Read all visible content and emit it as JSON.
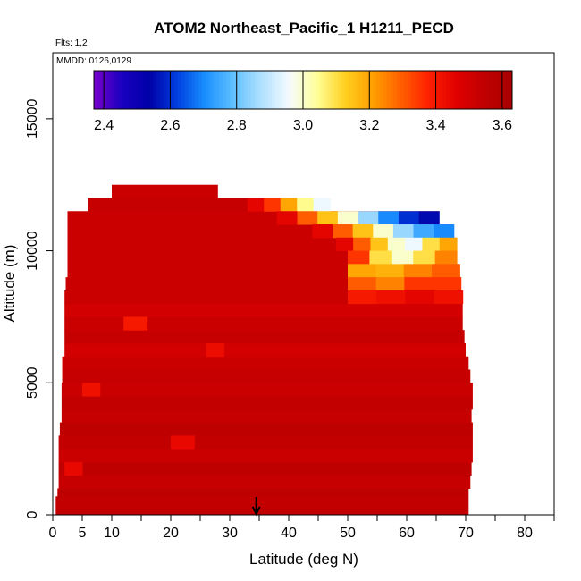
{
  "chart_data": {
    "type": "heatmap",
    "title": "ATOM2 Northeast_Pacific_1 H1211_PECD",
    "flights_label": "Flts: 1,2",
    "dates_label": "MMDD: 0126,0129",
    "xlabel": "Latitude (deg N)",
    "ylabel": "Altitude (m)",
    "xlim": [
      0,
      85
    ],
    "ylim": [
      0,
      17500
    ],
    "x_ticks": [
      0,
      5,
      10,
      20,
      30,
      40,
      50,
      60,
      70,
      80
    ],
    "x_minor_ticks": [
      15,
      25,
      35,
      45,
      55,
      65,
      75,
      85
    ],
    "y_ticks": [
      0,
      5000,
      10000,
      15000
    ],
    "colorbar": {
      "min": 2.37,
      "max": 3.63,
      "ticks": [
        2.4,
        2.6,
        2.8,
        3.0,
        3.2,
        3.4,
        3.6
      ],
      "colors": [
        "#7a00cc",
        "#1a00c0",
        "#0000a8",
        "#0040e0",
        "#1a90ff",
        "#60c0ff",
        "#b0e0ff",
        "#f5fbff",
        "#ffff99",
        "#ffd020",
        "#ffa000",
        "#ff6000",
        "#ff2000",
        "#e00000",
        "#c00000",
        "#a80000"
      ]
    },
    "marker": {
      "x": 34.5,
      "label": "arrow"
    },
    "rows": [
      {
        "z0": 0,
        "z1": 700,
        "x0": 0.5,
        "x1": 70.5,
        "value": 3.54
      },
      {
        "z0": 700,
        "z1": 1000,
        "x0": 0.8,
        "x1": 70.5,
        "value": 3.55
      },
      {
        "z0": 1000,
        "z1": 1500,
        "x0": 1.0,
        "x1": 70.8,
        "value": 3.53
      },
      {
        "z0": 1500,
        "z1": 2000,
        "x0": 1.0,
        "x1": 71.0,
        "value": 3.55
      },
      {
        "z0": 2000,
        "z1": 2500,
        "x0": 1.0,
        "x1": 71.2,
        "value": 3.52
      },
      {
        "z0": 2500,
        "z1": 3000,
        "x0": 1.0,
        "x1": 71.2,
        "value": 3.54
      },
      {
        "z0": 3000,
        "z1": 3500,
        "x0": 1.2,
        "x1": 71.2,
        "value": 3.55
      },
      {
        "z0": 3500,
        "z1": 4000,
        "x0": 1.5,
        "x1": 71.0,
        "value": 3.53
      },
      {
        "z0": 4000,
        "z1": 4500,
        "x0": 1.5,
        "x1": 71.2,
        "value": 3.54
      },
      {
        "z0": 4500,
        "z1": 5000,
        "x0": 1.5,
        "x1": 71.2,
        "value": 3.52
      },
      {
        "z0": 5000,
        "z1": 5500,
        "x0": 1.6,
        "x1": 70.8,
        "value": 3.53
      },
      {
        "z0": 5500,
        "z1": 6000,
        "x0": 1.6,
        "x1": 70.5,
        "value": 3.52
      },
      {
        "z0": 6000,
        "z1": 6500,
        "x0": 2.0,
        "x1": 70.0,
        "value": 3.5
      },
      {
        "z0": 6500,
        "z1": 7000,
        "x0": 2.0,
        "x1": 69.8,
        "value": 3.53
      },
      {
        "z0": 7000,
        "z1": 7500,
        "x0": 2.0,
        "x1": 69.5,
        "value": 3.52
      },
      {
        "z0": 7500,
        "z1": 8000,
        "x0": 2.0,
        "x1": 69.5,
        "value": 3.5
      },
      {
        "z0": 8000,
        "z1": 8500,
        "x0": 2.0,
        "x1": 69.5,
        "value": 3.52
      },
      {
        "z0": 8500,
        "z1": 9000,
        "x0": 2.2,
        "x1": 69.2,
        "value": 3.52
      },
      {
        "z0": 9000,
        "z1": 9500,
        "x0": 2.5,
        "x1": 69.0,
        "value": 3.52
      },
      {
        "z0": 9500,
        "z1": 10000,
        "x0": 2.5,
        "x1": 68.5,
        "value": 3.52
      },
      {
        "z0": 10000,
        "z1": 10500,
        "x0": 2.5,
        "x1": 68.5,
        "value": 3.52
      },
      {
        "z0": 10500,
        "z1": 11000,
        "x0": 2.5,
        "x1": 68.0,
        "value": 3.52
      },
      {
        "z0": 11000,
        "z1": 11500,
        "x0": 2.5,
        "x1": 65.5,
        "value": 3.52
      },
      {
        "z0": 11500,
        "z1": 12000,
        "x0": 6.0,
        "x1": 47.0,
        "value": 3.53
      },
      {
        "z0": 12000,
        "z1": 12500,
        "x0": 10.0,
        "x1": 28.0,
        "value": 3.52
      }
    ],
    "patches": [
      {
        "z0": 11500,
        "z1": 12000,
        "x0": 33,
        "x1": 47,
        "values": [
          3.45,
          3.35,
          3.2,
          3.05,
          2.95
        ]
      },
      {
        "z0": 11000,
        "z1": 11500,
        "x0": 38,
        "x1": 65.5,
        "values": [
          3.45,
          3.3,
          3.15,
          3.0,
          2.85,
          2.7,
          2.6,
          2.55
        ]
      },
      {
        "z0": 10500,
        "z1": 11000,
        "x0": 44,
        "x1": 68,
        "values": [
          3.45,
          3.3,
          3.15,
          3.0,
          2.85,
          2.75,
          2.7
        ]
      },
      {
        "z0": 10000,
        "z1": 10500,
        "x0": 48,
        "x1": 68.5,
        "values": [
          3.45,
          3.3,
          3.15,
          3.0,
          2.95,
          3.1,
          3.2
        ]
      },
      {
        "z0": 9500,
        "z1": 10000,
        "x0": 50,
        "x1": 68.5,
        "values": [
          3.35,
          3.1,
          3.0,
          3.1,
          3.25
        ]
      },
      {
        "z0": 9000,
        "z1": 9500,
        "x0": 50,
        "x1": 69.0,
        "values": [
          3.2,
          3.18,
          3.25,
          3.3
        ]
      },
      {
        "z0": 8500,
        "z1": 9000,
        "x0": 50,
        "x1": 69.2,
        "values": [
          3.3,
          3.25,
          3.35,
          3.35
        ]
      },
      {
        "z0": 8000,
        "z1": 8500,
        "x0": 50,
        "x1": 69.5,
        "values": [
          3.4,
          3.42,
          3.45,
          3.42
        ]
      },
      {
        "z0": 7000,
        "z1": 7500,
        "x0": 12,
        "x1": 16,
        "values": [
          3.4
        ]
      },
      {
        "z0": 4500,
        "z1": 5000,
        "x0": 5,
        "x1": 8,
        "values": [
          3.42
        ]
      },
      {
        "z0": 2500,
        "z1": 3000,
        "x0": 20,
        "x1": 24,
        "values": [
          3.44
        ]
      },
      {
        "z0": 6000,
        "z1": 6500,
        "x0": 26,
        "x1": 29,
        "values": [
          3.43
        ]
      },
      {
        "z0": 1500,
        "z1": 2000,
        "x0": 2,
        "x1": 5,
        "values": [
          3.44
        ]
      }
    ]
  }
}
